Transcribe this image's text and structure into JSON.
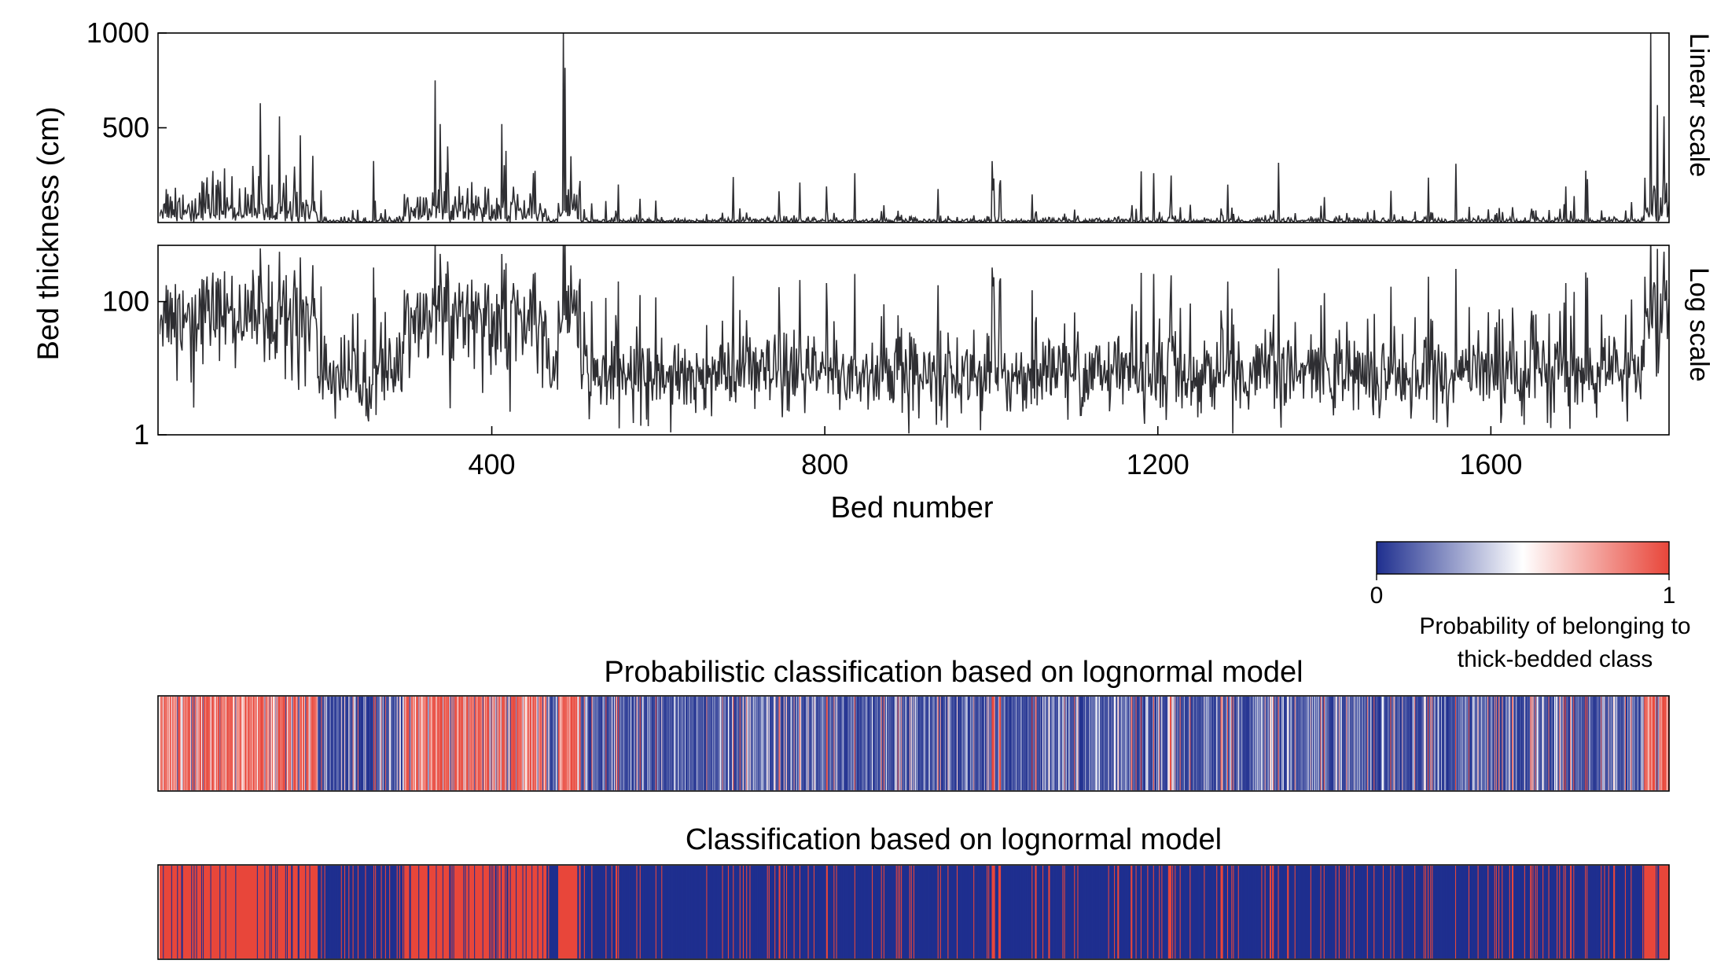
{
  "chart_data": [
    {
      "type": "line",
      "panel_label": "Linear scale",
      "ylabel": "Bed thickness (cm)",
      "xlabel": "Bed number",
      "x_range": [
        1,
        1814
      ],
      "ylim": [
        0,
        1000
      ],
      "yscale": "linear",
      "y_ticks": [
        "500",
        "1000"
      ],
      "y_tick_values": [
        500,
        1000
      ],
      "x_ticks": [
        "400",
        "800",
        "1200",
        "1600"
      ],
      "x_tick_values": [
        400,
        800,
        1200,
        1600
      ],
      "grid": false,
      "line_color": "#2e2e32"
    },
    {
      "type": "line",
      "panel_label": "Log scale",
      "ylim": [
        1,
        700
      ],
      "yscale": "log",
      "y_ticks": [
        "1",
        "100"
      ],
      "y_tick_values": [
        1,
        100
      ],
      "grid": false,
      "line_color": "#2e2e32"
    },
    {
      "type": "heatmap",
      "title": "Probabilistic classification based on lognormal model",
      "colorbar": {
        "min_label": "0",
        "max_label": "1",
        "label_line1": "Probability of belonging to",
        "label_line2": "thick-bedded class",
        "colors": [
          "#1f2f8f",
          "#ffffff",
          "#e8463a"
        ],
        "placement": "top-right"
      }
    },
    {
      "type": "heatmap",
      "title": "Classification based on lognormal model",
      "class_colors": {
        "thin": "#1f2f8f",
        "thick": "#e8463a"
      }
    }
  ],
  "series": {
    "n_beds": 1814,
    "thick_segments": [
      [
        1,
        190
      ],
      [
        295,
        465
      ],
      [
        480,
        505
      ],
      [
        1785,
        1814
      ]
    ],
    "thick_median_cm": 70,
    "thin_median_cm": 8,
    "spikes": [
      {
        "bed": 122,
        "value": 630
      },
      {
        "bed": 145,
        "value": 560
      },
      {
        "bed": 170,
        "value": 460
      },
      {
        "bed": 332,
        "value": 750
      },
      {
        "bed": 338,
        "value": 520
      },
      {
        "bed": 486,
        "value": 1000
      },
      {
        "bed": 495,
        "value": 350
      },
      {
        "bed": 690,
        "value": 240
      },
      {
        "bed": 836,
        "value": 260
      },
      {
        "bed": 802,
        "value": 190
      },
      {
        "bed": 1180,
        "value": 270
      },
      {
        "bed": 1195,
        "value": 260
      },
      {
        "bed": 1284,
        "value": 200
      },
      {
        "bed": 1690,
        "value": 190
      },
      {
        "bed": 1792,
        "value": 1000
      },
      {
        "bed": 1800,
        "value": 620
      },
      {
        "bed": 1808,
        "value": 560
      }
    ]
  }
}
